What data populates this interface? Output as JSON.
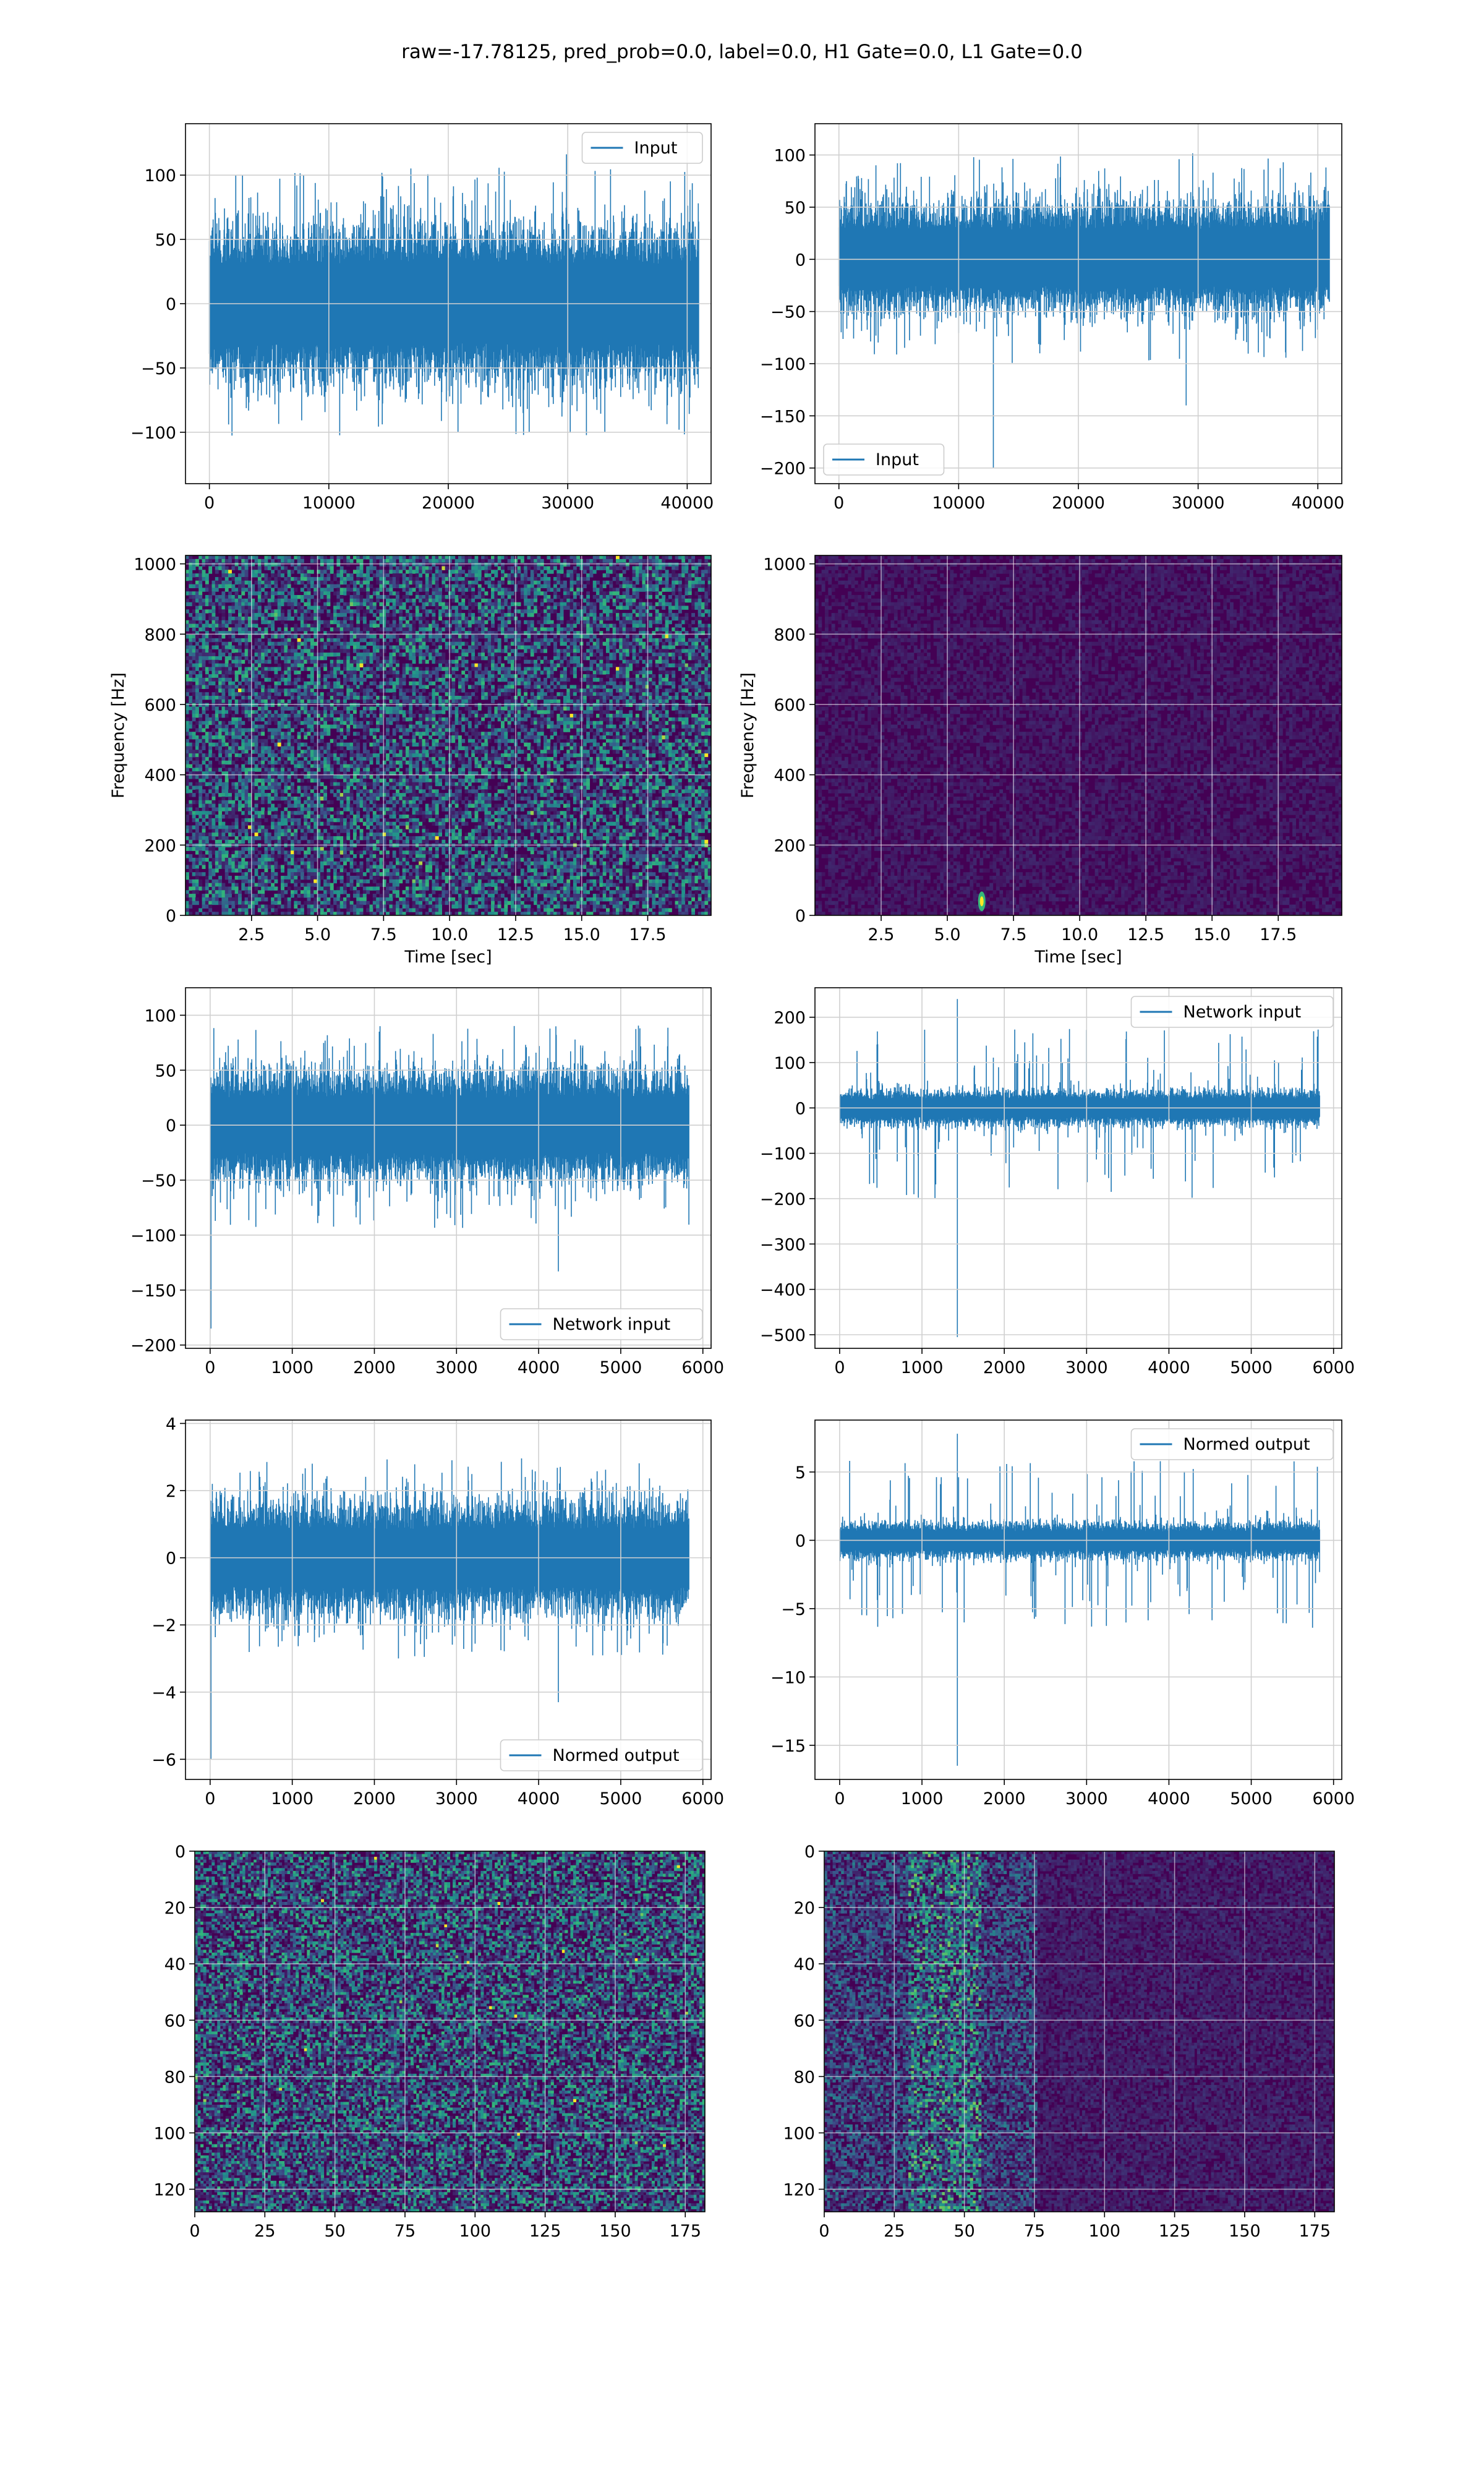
{
  "figure": {
    "title": "raw=-17.78125, pred_prob=0.0, label=0.0, H1 Gate=0.0, L1 Gate=0.0"
  },
  "colors": {
    "line": "#1f77b4",
    "grid": "#d0d0d0",
    "viridis_low": "#440154",
    "viridis_mid": "#31688e",
    "viridis_teal": "#21918c",
    "viridis_green": "#35b779",
    "viridis_high": "#fde725"
  },
  "chart_data": [
    {
      "id": "input-left",
      "type": "line",
      "title": "",
      "xlabel": "",
      "ylabel": "",
      "xlim": [
        -2000,
        42000
      ],
      "ylim": [
        -140,
        140
      ],
      "xticks": [
        0,
        10000,
        20000,
        30000,
        40000
      ],
      "xtick_labels": [
        "0",
        "10000",
        "20000",
        "30000",
        "40000"
      ],
      "yticks": [
        -100,
        -50,
        0,
        50,
        100
      ],
      "ytick_labels": [
        "−100",
        "−50",
        "0",
        "50",
        "100"
      ],
      "grid": true,
      "legend": {
        "position": "upper right",
        "entries": [
          "Input"
        ]
      },
      "series": [
        {
          "name": "Input",
          "x_range": [
            0,
            40960
          ],
          "band": [
            -55,
            55
          ],
          "max": 128,
          "min": -125
        }
      ]
    },
    {
      "id": "input-right",
      "type": "line",
      "title": "",
      "xlabel": "",
      "ylabel": "",
      "xlim": [
        -2000,
        42000
      ],
      "ylim": [
        -215,
        130
      ],
      "xticks": [
        0,
        10000,
        20000,
        30000,
        40000
      ],
      "xtick_labels": [
        "0",
        "10000",
        "20000",
        "30000",
        "40000"
      ],
      "yticks": [
        -200,
        -150,
        -100,
        -50,
        0,
        50,
        100
      ],
      "ytick_labels": [
        "−200",
        "−150",
        "−100",
        "−50",
        "0",
        "50",
        "100"
      ],
      "grid": true,
      "legend": {
        "position": "lower left",
        "entries": [
          "Input"
        ]
      },
      "series": [
        {
          "name": "Input",
          "x_range": [
            0,
            40960
          ],
          "band": [
            -45,
            50
          ],
          "max": 127,
          "min": -200,
          "spikes": [
            {
              "x": 12900,
              "y": -200
            },
            {
              "x": 29000,
              "y": -140
            }
          ]
        }
      ]
    },
    {
      "id": "spectrogram-left",
      "type": "heatmap",
      "title": "",
      "xlabel": "Time [sec]",
      "ylabel": "Frequency [Hz]",
      "xlim": [
        0,
        19.9
      ],
      "ylim": [
        0,
        1024
      ],
      "xticks": [
        2.5,
        5.0,
        7.5,
        10.0,
        12.5,
        15.0,
        17.5
      ],
      "xtick_labels": [
        "2.5",
        "5.0",
        "7.5",
        "10.0",
        "12.5",
        "15.0",
        "17.5"
      ],
      "yticks": [
        0,
        200,
        400,
        600,
        800,
        1000
      ],
      "ytick_labels": [
        "0",
        "200",
        "400",
        "600",
        "800",
        "1000"
      ],
      "grid": true,
      "colormap": "viridis",
      "intensity": "uniform-noise"
    },
    {
      "id": "spectrogram-right",
      "type": "heatmap",
      "title": "",
      "xlabel": "Time [sec]",
      "ylabel": "Frequency [Hz]",
      "xlim": [
        0,
        19.9
      ],
      "ylim": [
        0,
        1024
      ],
      "xticks": [
        2.5,
        5.0,
        7.5,
        10.0,
        12.5,
        15.0,
        17.5
      ],
      "xtick_labels": [
        "2.5",
        "5.0",
        "7.5",
        "10.0",
        "12.5",
        "15.0",
        "17.5"
      ],
      "yticks": [
        0,
        200,
        400,
        600,
        800,
        1000
      ],
      "ytick_labels": [
        "0",
        "200",
        "400",
        "600",
        "800",
        "1000"
      ],
      "grid": true,
      "colormap": "viridis",
      "intensity": "dark-with-glitch",
      "hot_spot": {
        "time": 6.3,
        "freq": 40
      }
    },
    {
      "id": "network-input-left",
      "type": "line",
      "title": "",
      "xlabel": "",
      "ylabel": "",
      "xlim": [
        -300,
        6100
      ],
      "ylim": [
        -203,
        125
      ],
      "xticks": [
        0,
        1000,
        2000,
        3000,
        4000,
        5000,
        6000
      ],
      "xtick_labels": [
        "0",
        "1000",
        "2000",
        "3000",
        "4000",
        "5000",
        "6000"
      ],
      "yticks": [
        -200,
        -150,
        -100,
        -50,
        0,
        50,
        100
      ],
      "ytick_labels": [
        "−200",
        "−150",
        "−100",
        "−50",
        "0",
        "50",
        "100"
      ],
      "grid": true,
      "legend": {
        "position": "lower right",
        "entries": [
          "Network input"
        ]
      },
      "series": [
        {
          "name": "Network input",
          "x_range": [
            0,
            5830
          ],
          "band": [
            -45,
            45
          ],
          "max": 112,
          "min": -185,
          "spikes": [
            {
              "x": 10,
              "y": -185
            },
            {
              "x": 4240,
              "y": -133
            }
          ]
        }
      ]
    },
    {
      "id": "network-input-right",
      "type": "line",
      "title": "",
      "xlabel": "",
      "ylabel": "",
      "xlim": [
        -300,
        6100
      ],
      "ylim": [
        -530,
        265
      ],
      "xticks": [
        0,
        1000,
        2000,
        3000,
        4000,
        5000,
        6000
      ],
      "xtick_labels": [
        "0",
        "1000",
        "2000",
        "3000",
        "4000",
        "5000",
        "6000"
      ],
      "yticks": [
        -500,
        -400,
        -300,
        -200,
        -100,
        0,
        100,
        200
      ],
      "ytick_labels": [
        "−500",
        "−400",
        "−300",
        "−200",
        "−100",
        "0",
        "100",
        "200"
      ],
      "grid": true,
      "legend": {
        "position": "upper right",
        "entries": [
          "Network input"
        ]
      },
      "series": [
        {
          "name": "Network input",
          "x_range": [
            0,
            5830
          ],
          "band": [
            -35,
            35
          ],
          "max": 240,
          "min": -505,
          "spikes": [
            {
              "x": 1430,
              "y": 240
            },
            {
              "x": 1430,
              "y": -505
            }
          ]
        }
      ]
    },
    {
      "id": "normed-output-left",
      "type": "line",
      "title": "",
      "xlabel": "",
      "ylabel": "",
      "xlim": [
        -300,
        6100
      ],
      "ylim": [
        -6.6,
        4.1
      ],
      "xticks": [
        0,
        1000,
        2000,
        3000,
        4000,
        5000,
        6000
      ],
      "xtick_labels": [
        "0",
        "1000",
        "2000",
        "3000",
        "4000",
        "5000",
        "6000"
      ],
      "yticks": [
        -6,
        -4,
        -2,
        0,
        2,
        4
      ],
      "ytick_labels": [
        "−6",
        "−4",
        "−2",
        "0",
        "2",
        "4"
      ],
      "grid": true,
      "legend": {
        "position": "lower right",
        "entries": [
          "Normed output"
        ]
      },
      "series": [
        {
          "name": "Normed output",
          "x_range": [
            0,
            5830
          ],
          "band": [
            -1.5,
            1.5
          ],
          "max": 3.6,
          "min": -6.0,
          "spikes": [
            {
              "x": 10,
              "y": -6.0
            },
            {
              "x": 4240,
              "y": -4.3
            }
          ]
        }
      ]
    },
    {
      "id": "normed-output-right",
      "type": "line",
      "title": "",
      "xlabel": "",
      "ylabel": "",
      "xlim": [
        -300,
        6100
      ],
      "ylim": [
        -17.5,
        8.8
      ],
      "xticks": [
        0,
        1000,
        2000,
        3000,
        4000,
        5000,
        6000
      ],
      "xtick_labels": [
        "0",
        "1000",
        "2000",
        "3000",
        "4000",
        "5000",
        "6000"
      ],
      "yticks": [
        -15,
        -10,
        -5,
        0,
        5
      ],
      "ytick_labels": [
        "−15",
        "−10",
        "−5",
        "0",
        "5"
      ],
      "grid": true,
      "legend": {
        "position": "upper right",
        "entries": [
          "Normed output"
        ]
      },
      "series": [
        {
          "name": "Normed output",
          "x_range": [
            0,
            5830
          ],
          "band": [
            -1.2,
            1.2
          ],
          "max": 7.8,
          "min": -16.5,
          "spikes": [
            {
              "x": 1430,
              "y": 7.8
            },
            {
              "x": 1430,
              "y": -16.5
            }
          ]
        }
      ]
    },
    {
      "id": "feature-map-left",
      "type": "heatmap",
      "title": "",
      "xlabel": "",
      "ylabel": "",
      "xlim": [
        0,
        182
      ],
      "ylim": [
        128,
        0
      ],
      "xticks": [
        0,
        25,
        50,
        75,
        100,
        125,
        150,
        175
      ],
      "xtick_labels": [
        "0",
        "25",
        "50",
        "75",
        "100",
        "125",
        "150",
        "175"
      ],
      "yticks": [
        0,
        20,
        40,
        60,
        80,
        100,
        120
      ],
      "ytick_labels": [
        "0",
        "20",
        "40",
        "60",
        "80",
        "100",
        "120"
      ],
      "grid": true,
      "colormap": "viridis",
      "intensity": "uniform-noise"
    },
    {
      "id": "feature-map-right",
      "type": "heatmap",
      "title": "",
      "xlabel": "",
      "ylabel": "",
      "xlim": [
        0,
        182
      ],
      "ylim": [
        128,
        0
      ],
      "xticks": [
        0,
        25,
        50,
        75,
        100,
        125,
        150,
        175
      ],
      "xtick_labels": [
        "0",
        "25",
        "50",
        "75",
        "100",
        "125",
        "150",
        "175"
      ],
      "yticks": [
        0,
        20,
        40,
        60,
        80,
        100,
        120
      ],
      "ytick_labels": [
        "0",
        "20",
        "40",
        "60",
        "80",
        "100",
        "120"
      ],
      "grid": true,
      "colormap": "viridis",
      "intensity": "left-band",
      "band_x": [
        0,
        75
      ],
      "peak_x": [
        30,
        55
      ]
    }
  ]
}
